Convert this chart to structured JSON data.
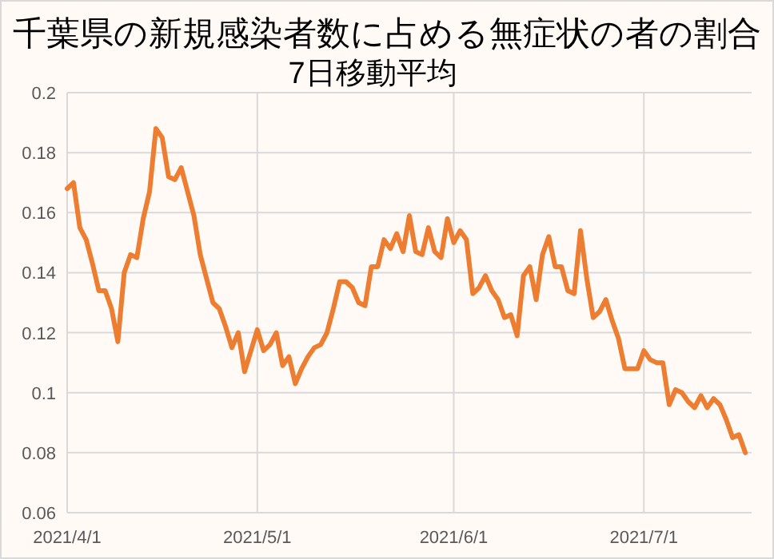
{
  "chart_data": {
    "type": "line",
    "title": "千葉県の新規感染者数に占める無症状の者の割合",
    "subtitle": "7日移動平均",
    "x": [
      "2021-04-01",
      "2021-04-02",
      "2021-04-03",
      "2021-04-04",
      "2021-04-05",
      "2021-04-06",
      "2021-04-07",
      "2021-04-08",
      "2021-04-09",
      "2021-04-10",
      "2021-04-11",
      "2021-04-12",
      "2021-04-13",
      "2021-04-14",
      "2021-04-15",
      "2021-04-16",
      "2021-04-17",
      "2021-04-18",
      "2021-04-19",
      "2021-04-20",
      "2021-04-21",
      "2021-04-22",
      "2021-04-23",
      "2021-04-24",
      "2021-04-25",
      "2021-04-26",
      "2021-04-27",
      "2021-04-28",
      "2021-04-29",
      "2021-04-30",
      "2021-05-01",
      "2021-05-02",
      "2021-05-03",
      "2021-05-04",
      "2021-05-05",
      "2021-05-06",
      "2021-05-07",
      "2021-05-08",
      "2021-05-09",
      "2021-05-10",
      "2021-05-11",
      "2021-05-12",
      "2021-05-13",
      "2021-05-14",
      "2021-05-15",
      "2021-05-16",
      "2021-05-17",
      "2021-05-18",
      "2021-05-19",
      "2021-05-20",
      "2021-05-21",
      "2021-05-22",
      "2021-05-23",
      "2021-05-24",
      "2021-05-25",
      "2021-05-26",
      "2021-05-27",
      "2021-05-28",
      "2021-05-29",
      "2021-05-30",
      "2021-05-31",
      "2021-06-01",
      "2021-06-02",
      "2021-06-03",
      "2021-06-04",
      "2021-06-05",
      "2021-06-06",
      "2021-06-07",
      "2021-06-08",
      "2021-06-09",
      "2021-06-10",
      "2021-06-11",
      "2021-06-12",
      "2021-06-13",
      "2021-06-14",
      "2021-06-15",
      "2021-06-16",
      "2021-06-17",
      "2021-06-18",
      "2021-06-19",
      "2021-06-20",
      "2021-06-21",
      "2021-06-22",
      "2021-06-23",
      "2021-06-24",
      "2021-06-25",
      "2021-06-26",
      "2021-06-27",
      "2021-06-28",
      "2021-06-29",
      "2021-06-30",
      "2021-07-01",
      "2021-07-02",
      "2021-07-03",
      "2021-07-04",
      "2021-07-05",
      "2021-07-06",
      "2021-07-07",
      "2021-07-08",
      "2021-07-09",
      "2021-07-10",
      "2021-07-11",
      "2021-07-12",
      "2021-07-13",
      "2021-07-14",
      "2021-07-15",
      "2021-07-16",
      "2021-07-17"
    ],
    "series": [
      {
        "color": "#ed7d31",
        "values": [
          0.168,
          0.17,
          0.155,
          0.151,
          0.143,
          0.134,
          0.134,
          0.128,
          0.117,
          0.14,
          0.146,
          0.145,
          0.158,
          0.167,
          0.188,
          0.185,
          0.172,
          0.171,
          0.175,
          0.167,
          0.159,
          0.146,
          0.138,
          0.13,
          0.128,
          0.122,
          0.115,
          0.12,
          0.107,
          0.114,
          0.121,
          0.114,
          0.116,
          0.12,
          0.109,
          0.112,
          0.103,
          0.108,
          0.112,
          0.115,
          0.116,
          0.12,
          0.128,
          0.137,
          0.137,
          0.135,
          0.13,
          0.129,
          0.142,
          0.142,
          0.151,
          0.148,
          0.153,
          0.147,
          0.159,
          0.147,
          0.146,
          0.155,
          0.147,
          0.145,
          0.158,
          0.15,
          0.154,
          0.151,
          0.133,
          0.135,
          0.139,
          0.134,
          0.131,
          0.125,
          0.126,
          0.119,
          0.139,
          0.142,
          0.131,
          0.146,
          0.152,
          0.142,
          0.142,
          0.134,
          0.133,
          0.154,
          0.138,
          0.125,
          0.127,
          0.131,
          0.124,
          0.118,
          0.108,
          0.108,
          0.108,
          0.114,
          0.111,
          0.11,
          0.11,
          0.096,
          0.101,
          0.1,
          0.097,
          0.095,
          0.099,
          0.095,
          0.098,
          0.096,
          0.091,
          0.085,
          0.086,
          0.08
        ]
      }
    ],
    "xlim": [
      "2021-04-01",
      "2021-07-18"
    ],
    "xticks": [
      {
        "value": "2021-04-01",
        "label": "2021/4/1"
      },
      {
        "value": "2021-05-01",
        "label": "2021/5/1"
      },
      {
        "value": "2021-06-01",
        "label": "2021/6/1"
      },
      {
        "value": "2021-07-01",
        "label": "2021/7/1"
      }
    ],
    "ylim": [
      0.06,
      0.2
    ],
    "yticks": [
      {
        "value": 0.06,
        "label": "0.06"
      },
      {
        "value": 0.08,
        "label": "0.08"
      },
      {
        "value": 0.1,
        "label": "0.1"
      },
      {
        "value": 0.12,
        "label": "0.12"
      },
      {
        "value": 0.14,
        "label": "0.14"
      },
      {
        "value": 0.16,
        "label": "0.16"
      },
      {
        "value": 0.18,
        "label": "0.18"
      },
      {
        "value": 0.2,
        "label": "0.2"
      }
    ],
    "grid": true
  }
}
